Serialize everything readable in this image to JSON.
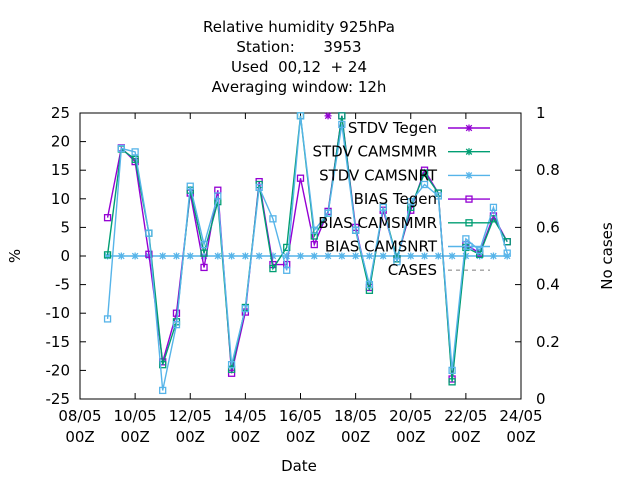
{
  "chart_data": {
    "type": "line",
    "title_lines": [
      "Relative humidity 925hPa",
      "Station:      3953",
      "Used  00,12  + 24",
      "Averaging window: 12h"
    ],
    "xlabel": "Date",
    "ylabel": "%",
    "y2label": "No cases",
    "ylim": [
      -25,
      25
    ],
    "y2lim": [
      0,
      1
    ],
    "yticks": [
      "25",
      "20",
      "15",
      "10",
      "5",
      "0",
      "-5",
      "-10",
      "-15",
      "-20",
      "-25"
    ],
    "y2ticks": [
      "1",
      "0.8",
      "0.6",
      "0.4",
      "0.2",
      "0"
    ],
    "xticks": [
      {
        "date": "08/05",
        "hour": "00Z"
      },
      {
        "date": "10/05",
        "hour": "00Z"
      },
      {
        "date": "12/05",
        "hour": "00Z"
      },
      {
        "date": "14/05",
        "hour": "00Z"
      },
      {
        "date": "16/05",
        "hour": "00Z"
      },
      {
        "date": "18/05",
        "hour": "00Z"
      },
      {
        "date": "20/05",
        "hour": "00Z"
      },
      {
        "date": "22/05",
        "hour": "00Z"
      },
      {
        "date": "24/05",
        "hour": "00Z"
      }
    ],
    "x_range_days": [
      0,
      16
    ],
    "x_days": [
      1.0,
      1.5,
      2.0,
      2.5,
      3.0,
      3.5,
      4.0,
      4.5,
      5.0,
      5.5,
      6.0,
      6.5,
      7.0,
      7.5,
      8.0,
      8.5,
      9.0,
      9.5,
      10.0,
      10.5,
      11.0,
      11.5,
      12.0,
      12.5,
      13.0,
      13.5,
      14.0,
      14.5,
      15.0,
      15.5
    ],
    "legend_position": "top-right",
    "grid": false,
    "series": [
      {
        "name": "STDV Tegen",
        "axis": "y",
        "color": "#9400d3",
        "marker": "star",
        "dash": false,
        "values": [
          null,
          null,
          null,
          null,
          null,
          null,
          null,
          null,
          null,
          null,
          null,
          null,
          null,
          null,
          null,
          null,
          24.5,
          null,
          null,
          null,
          null,
          null,
          null,
          null,
          null,
          null,
          null,
          null,
          null,
          null
        ]
      },
      {
        "name": "STDV CAMSMMR",
        "axis": "y",
        "color": "#009e73",
        "marker": "star",
        "dash": false,
        "values": [
          null,
          null,
          null,
          null,
          null,
          null,
          null,
          null,
          null,
          null,
          null,
          null,
          null,
          null,
          null,
          null,
          null,
          null,
          null,
          null,
          null,
          null,
          null,
          null,
          null,
          null,
          null,
          null,
          null,
          null
        ]
      },
      {
        "name": "STDV CAMSNRT",
        "axis": "y",
        "color": "#56b4e9",
        "marker": "star",
        "dash": false,
        "values": [
          0,
          0,
          0,
          0,
          0,
          0,
          0,
          0,
          0,
          0,
          0,
          0,
          0,
          0,
          0,
          0,
          0,
          0,
          0,
          0,
          0,
          0,
          0,
          0,
          0,
          0,
          0,
          0,
          0,
          0
        ]
      },
      {
        "name": "BIAS Tegen",
        "axis": "y",
        "color": "#9400d3",
        "marker": "square",
        "dash": false,
        "values": [
          6.7,
          18.9,
          16.5,
          0.3,
          -18.5,
          -10.0,
          11.0,
          -2.0,
          11.5,
          -20.5,
          -9.8,
          13.0,
          -1.5,
          -1.5,
          13.6,
          2.0,
          7.8,
          24.5,
          5.0,
          -5.5,
          8.0,
          -0.5,
          8.0,
          15.0,
          11.0,
          -21.5,
          2.0,
          0.5,
          7.0,
          2.5
        ]
      },
      {
        "name": "BIAS CAMSMMR",
        "axis": "y",
        "color": "#009e73",
        "marker": "square",
        "dash": false,
        "values": [
          0.2,
          18.7,
          16.9,
          4.0,
          -19.0,
          -11.5,
          11.5,
          0.5,
          9.5,
          -19.8,
          -9.0,
          12.5,
          -2.2,
          1.5,
          24.5,
          3.5,
          7.5,
          24.5,
          4.5,
          -6.0,
          8.5,
          -0.5,
          8.5,
          14.5,
          11.0,
          -22.0,
          1.5,
          0.3,
          6.5,
          2.5
        ]
      },
      {
        "name": "BIAS CAMSNRT",
        "axis": "y",
        "color": "#56b4e9",
        "marker": "square",
        "dash": false,
        "values": [
          -11.0,
          18.8,
          18.2,
          4.0,
          -23.5,
          -12.0,
          12.2,
          2.0,
          10.5,
          -19.0,
          -9.2,
          12.0,
          6.5,
          -2.5,
          24.5,
          4.5,
          7.5,
          23.0,
          4.5,
          -5.0,
          8.5,
          -1.0,
          9.5,
          12.5,
          10.5,
          -20.0,
          3.0,
          1.0,
          8.5,
          0.5
        ]
      },
      {
        "name": "CASES",
        "axis": "y2",
        "color": "#a0a0a0",
        "marker": "none",
        "dash": true,
        "values": []
      }
    ]
  }
}
